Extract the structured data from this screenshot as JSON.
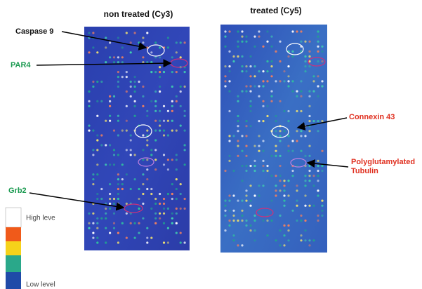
{
  "panels": [
    {
      "title": "non treated (Cy3)"
    },
    {
      "title": "treated  (Cy5)"
    }
  ],
  "labels": {
    "caspase": "Caspase 9",
    "par4": "PAR4",
    "grb2": "Grb2",
    "connexin": "Connexin 43",
    "tubulin": [
      "Polyglutamylated",
      "Tubulin"
    ]
  },
  "legend": {
    "high": "High leve",
    "low": "Low level"
  }
}
